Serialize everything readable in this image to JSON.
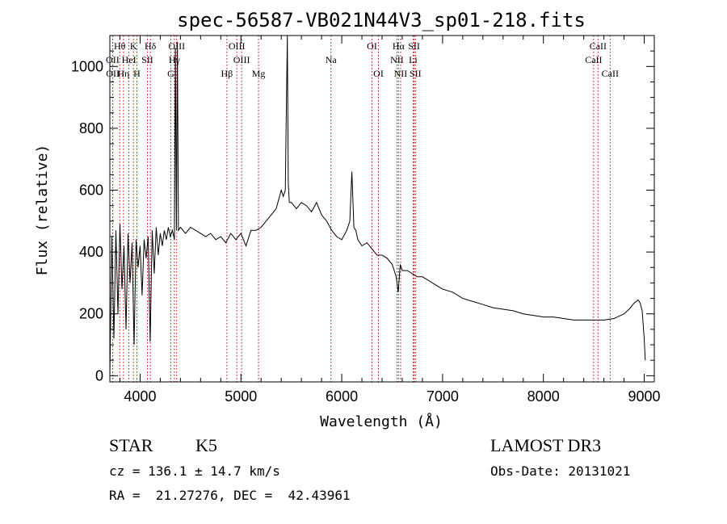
{
  "chart_data": {
    "type": "line",
    "title": "spec-56587-VB021N44V3_sp01-218.fits",
    "xlabel": "Wavelength (Å)",
    "ylabel": "Flux (relative)",
    "xlim": [
      3700,
      9100
    ],
    "ylim": [
      -20,
      1100
    ],
    "xticks": [
      4000,
      5000,
      6000,
      7000,
      8000,
      9000
    ],
    "yticks": [
      0,
      200,
      400,
      600,
      800,
      1000
    ],
    "series": [
      {
        "name": "flux",
        "x": [
          3700,
          3720,
          3740,
          3760,
          3780,
          3800,
          3820,
          3840,
          3860,
          3880,
          3900,
          3920,
          3940,
          3960,
          3980,
          4000,
          4020,
          4040,
          4060,
          4080,
          4100,
          4120,
          4140,
          4160,
          4180,
          4200,
          4220,
          4240,
          4260,
          4280,
          4300,
          4320,
          4340,
          4350,
          4360,
          4370,
          4380,
          4400,
          4450,
          4500,
          4550,
          4600,
          4650,
          4700,
          4750,
          4800,
          4850,
          4900,
          4950,
          5000,
          5050,
          5100,
          5150,
          5200,
          5250,
          5300,
          5350,
          5400,
          5420,
          5440,
          5460,
          5470,
          5480,
          5500,
          5550,
          5600,
          5650,
          5700,
          5750,
          5800,
          5850,
          5900,
          5950,
          6000,
          6050,
          6080,
          6100,
          6120,
          6140,
          6160,
          6200,
          6250,
          6300,
          6350,
          6400,
          6450,
          6500,
          6540,
          6560,
          6580,
          6600,
          6650,
          6700,
          6750,
          6800,
          6850,
          6900,
          6950,
          7000,
          7100,
          7200,
          7300,
          7400,
          7500,
          7600,
          7700,
          7800,
          7900,
          8000,
          8100,
          8200,
          8300,
          8400,
          8500,
          8600,
          8700,
          8800,
          8850,
          8900,
          8940,
          8960,
          8980,
          9000,
          9010
        ],
        "y": [
          0,
          450,
          120,
          470,
          200,
          490,
          280,
          420,
          150,
          460,
          300,
          430,
          100,
          440,
          350,
          420,
          260,
          440,
          380,
          450,
          110,
          470,
          330,
          480,
          390,
          460,
          420,
          470,
          440,
          480,
          450,
          470,
          440,
          1060,
          470,
          1080,
          470,
          480,
          460,
          480,
          470,
          460,
          450,
          460,
          440,
          450,
          430,
          460,
          440,
          460,
          420,
          470,
          470,
          480,
          500,
          520,
          540,
          600,
          580,
          600,
          1100,
          620,
          560,
          560,
          540,
          560,
          550,
          530,
          560,
          520,
          500,
          470,
          450,
          440,
          470,
          500,
          660,
          480,
          470,
          440,
          420,
          430,
          410,
          390,
          390,
          380,
          360,
          320,
          270,
          360,
          340,
          340,
          330,
          320,
          320,
          310,
          300,
          290,
          280,
          270,
          250,
          240,
          230,
          220,
          215,
          210,
          200,
          195,
          190,
          190,
          185,
          180,
          180,
          180,
          180,
          185,
          200,
          215,
          235,
          245,
          235,
          210,
          120,
          50
        ]
      }
    ],
    "lines": [
      {
        "label": "Hδ",
        "x": 4102,
        "row": 1
      },
      {
        "label": "Hθ",
        "x": 3798,
        "row": 1
      },
      {
        "label": "K",
        "x": 3934,
        "row": 1
      },
      {
        "label": "OIII",
        "x": 4363,
        "row": 1
      },
      {
        "label": "OIII",
        "x": 4959,
        "row": 1
      },
      {
        "label": "OI",
        "x": 6300,
        "row": 1
      },
      {
        "label": "Hα",
        "x": 6563,
        "row": 1
      },
      {
        "label": "SII",
        "x": 6717,
        "row": 1
      },
      {
        "label": "CaII",
        "x": 8542,
        "row": 1
      },
      {
        "label": "OII",
        "x": 3727,
        "row": 2
      },
      {
        "label": "HeI",
        "x": 3889,
        "row": 2
      },
      {
        "label": "SII",
        "x": 4072,
        "row": 2
      },
      {
        "label": "Hγ",
        "x": 4340,
        "row": 2
      },
      {
        "label": "OIII",
        "x": 5007,
        "row": 2
      },
      {
        "label": "Na",
        "x": 5893,
        "row": 2
      },
      {
        "label": "NII",
        "x": 6548,
        "row": 2
      },
      {
        "label": "Li",
        "x": 6708,
        "row": 2
      },
      {
        "label": "CaII",
        "x": 8498,
        "row": 2
      },
      {
        "label": "OII",
        "x": 3729,
        "row": 3
      },
      {
        "label": "Hη",
        "x": 3835,
        "row": 3
      },
      {
        "label": "H",
        "x": 3968,
        "row": 3
      },
      {
        "label": "G",
        "x": 4305,
        "row": 3
      },
      {
        "label": "Hβ",
        "x": 4861,
        "row": 3
      },
      {
        "label": "Mg",
        "x": 5175,
        "row": 3
      },
      {
        "label": "OI",
        "x": 6364,
        "row": 3
      },
      {
        "label": "NII",
        "x": 6584,
        "row": 3
      },
      {
        "label": "SII",
        "x": 6731,
        "row": 3
      },
      {
        "label": "CaII",
        "x": 8662,
        "row": 3
      }
    ]
  },
  "info": {
    "object_type": "STAR",
    "subclass": "K5",
    "survey": "LAMOST DR3",
    "redshift_text": "cz = 136.1 ± 14.7 km/s",
    "obs_date_text": "Obs-Date: 20131021",
    "coords_text": "RA =  21.27276, DEC =  42.43961"
  }
}
